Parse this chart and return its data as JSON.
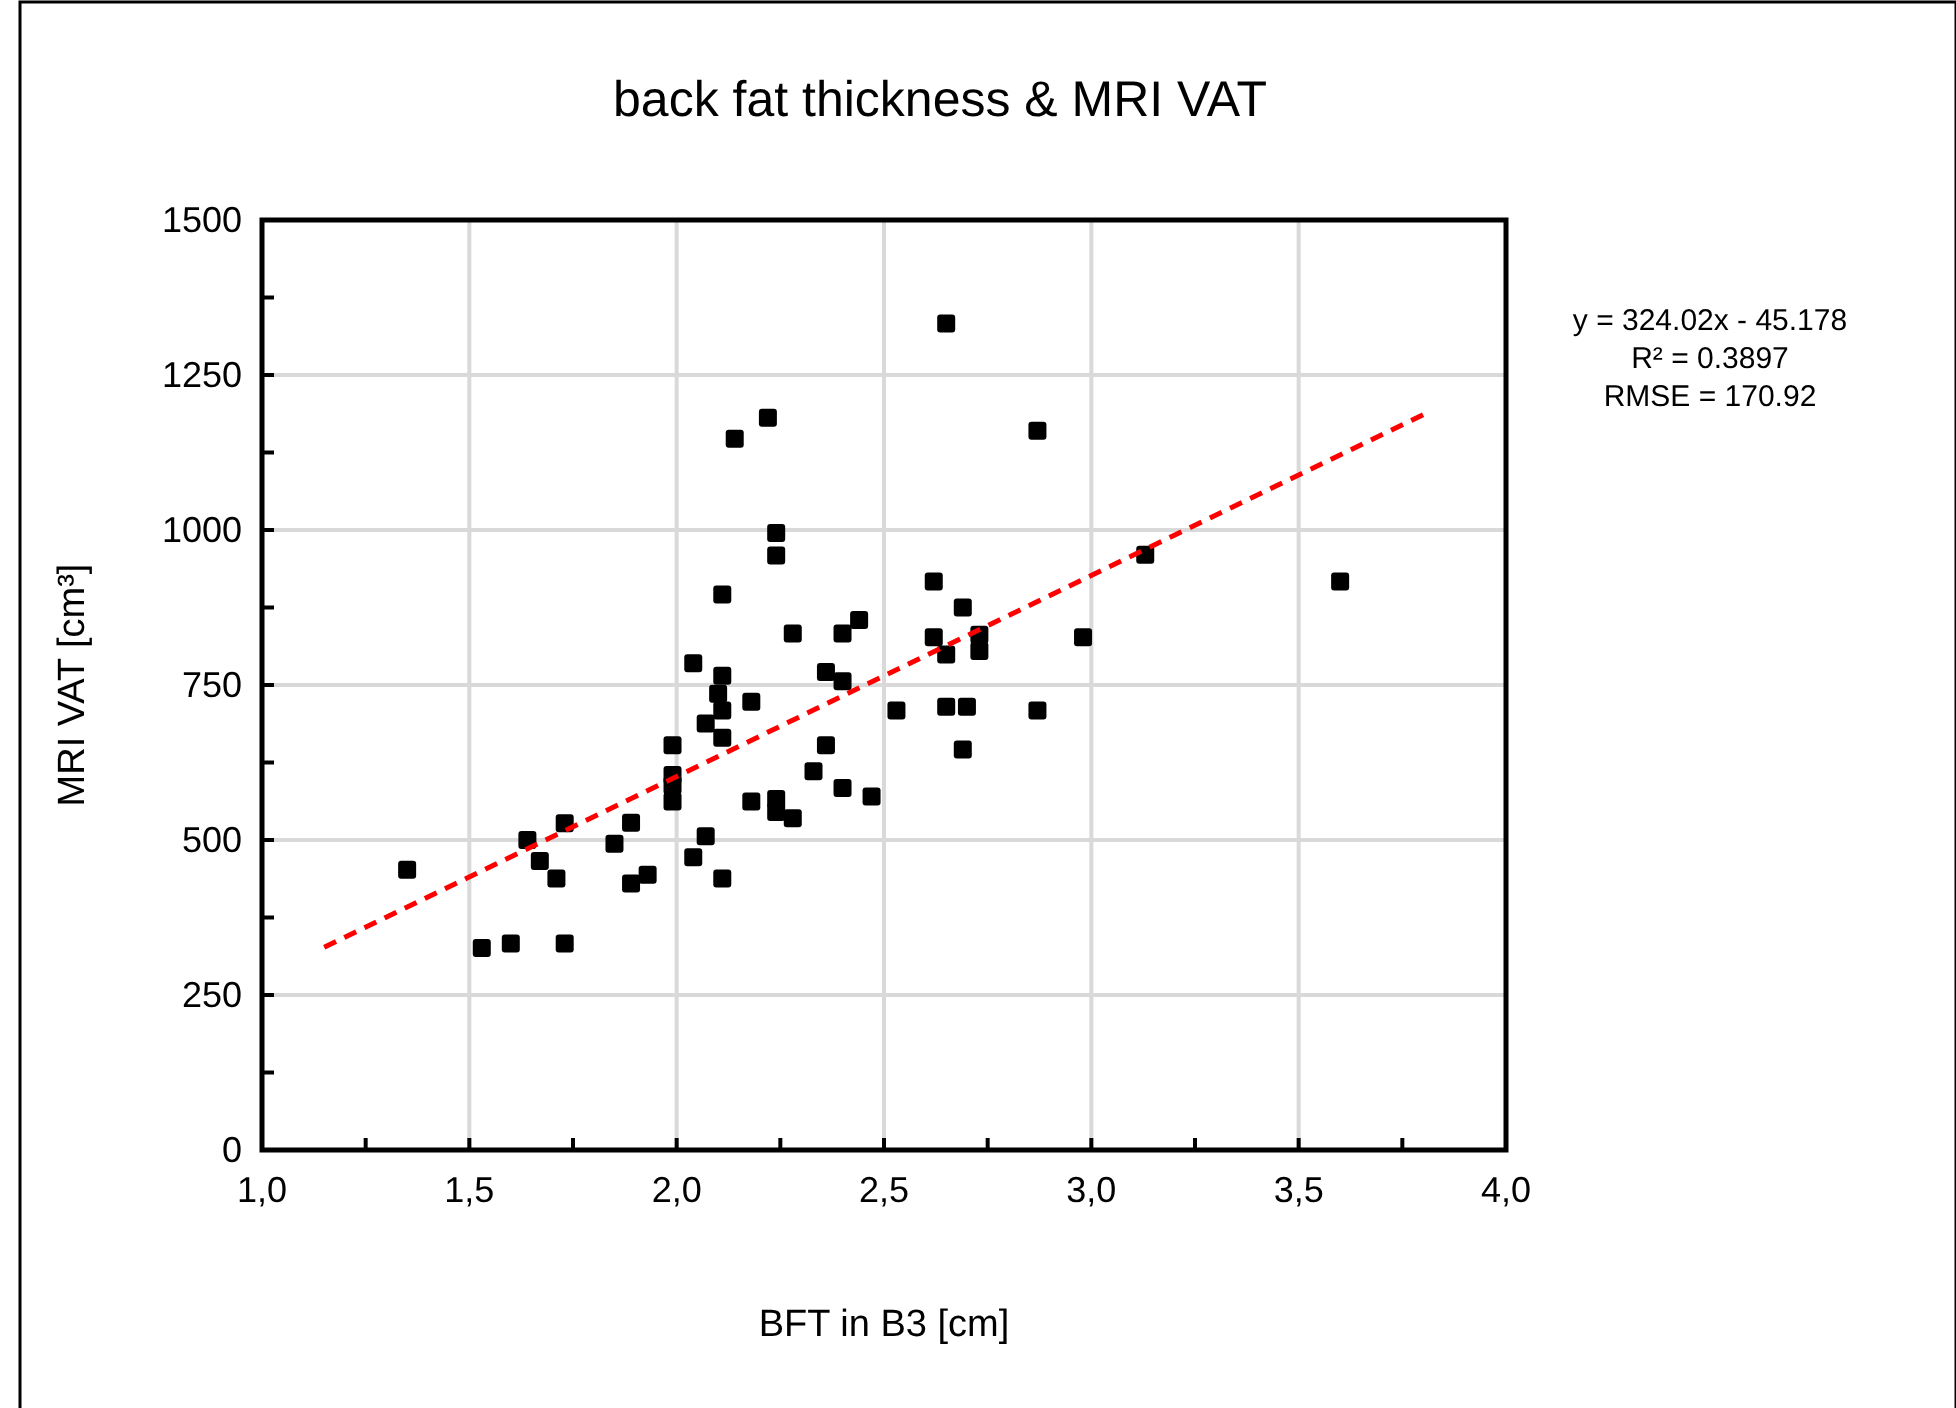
{
  "chart_data": {
    "type": "scatter",
    "title": "back fat thickness & MRI VAT",
    "xlabel": "BFT in B3 [cm]",
    "ylabel": "MRI VAT [cm³]",
    "xlim": [
      1,
      4
    ],
    "xticks": [
      {
        "value": 1,
        "label": "1,0"
      },
      {
        "value": 1.25,
        "label": null
      },
      {
        "value": 1.5,
        "label": "1,5"
      },
      {
        "value": 1.75,
        "label": null
      },
      {
        "value": 2,
        "label": "2,0"
      },
      {
        "value": 2.25,
        "label": null
      },
      {
        "value": 2.5,
        "label": "2,5"
      },
      {
        "value": 2.75,
        "label": null
      },
      {
        "value": 3,
        "label": "3,0"
      },
      {
        "value": 3.25,
        "label": null
      },
      {
        "value": 3.5,
        "label": "3,5"
      },
      {
        "value": 3.75,
        "label": null
      },
      {
        "value": 4,
        "label": "4,0"
      }
    ],
    "ylim": [
      0,
      1500
    ],
    "yticks": [
      0,
      {
        "value": 125,
        "label": null
      },
      250,
      {
        "value": 375,
        "label": null
      },
      500,
      {
        "value": 625,
        "label": null
      },
      750,
      {
        "value": 875,
        "label": null
      },
      1000,
      {
        "value": 1125,
        "label": null
      },
      1250,
      {
        "value": 1375,
        "label": null
      },
      1500
    ],
    "grid": true,
    "annotations": [
      "y = 324.02x  - 45.178",
      "R² = 0.3897",
      "RMSE = 170.92"
    ],
    "series": [
      {
        "color": "#000000",
        "marker": "square",
        "x": [
          1.35,
          1.53,
          1.6,
          1.73,
          1.64,
          1.67,
          1.71,
          1.73,
          1.85,
          1.89,
          1.89,
          1.93,
          1.99,
          1.99,
          1.99,
          1.99,
          2.04,
          2.04,
          2.07,
          2.07,
          2.1,
          2.11,
          2.11,
          2.11,
          2.11,
          2.18,
          2.18,
          2.24,
          2.24,
          2.28,
          2.33,
          2.36,
          2.36,
          2.4,
          2.4,
          2.47,
          2.14,
          2.22,
          2.24,
          2.24,
          2.11,
          2.28,
          2.4,
          2.44,
          2.65,
          2.87,
          3.13,
          3.6,
          2.62,
          2.69,
          2.62,
          2.65,
          2.73,
          2.73,
          2.98,
          2.53,
          2.65,
          2.7,
          2.87,
          2.69
        ],
        "values": [
          452,
          326,
          333,
          333,
          500,
          466,
          438,
          527,
          494,
          528,
          430,
          444,
          653,
          605,
          588,
          562,
          472,
          785,
          506,
          688,
          736,
          765,
          709,
          665,
          438,
          723,
          562,
          566,
          545,
          535,
          611,
          653,
          771,
          756,
          584,
          570,
          1147,
          1181,
          995,
          959,
          896,
          833,
          833,
          855,
          1333,
          1160,
          960,
          917,
          917,
          875,
          827,
          799,
          831,
          805,
          827,
          709,
          715,
          715,
          709,
          646
        ]
      },
      {
        "type": "line",
        "color": "#ff0000",
        "line_style": "dashed",
        "marker": "none",
        "x": [
          1.15,
          3.8
        ],
        "values": [
          327,
          1186
        ]
      }
    ]
  }
}
